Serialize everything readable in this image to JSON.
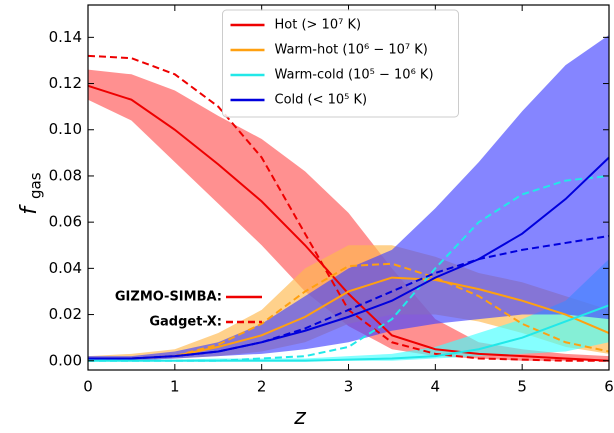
{
  "chart_data": {
    "type": "line",
    "xlabel": "z",
    "ylabel": "f",
    "ylabel_sub": "gas",
    "x": [
      0,
      0.5,
      1,
      1.5,
      2,
      2.5,
      3,
      3.5,
      4,
      4.5,
      5,
      5.5,
      6
    ],
    "xlim": [
      0,
      6
    ],
    "ylim": [
      -0.004,
      0.154
    ],
    "xticks": [
      0,
      1,
      2,
      3,
      4,
      5,
      6
    ],
    "yticks": [
      {
        "value": 0,
        "label": "0.00"
      },
      {
        "value": 0.02,
        "label": "0.02"
      },
      {
        "value": 0.04,
        "label": "0.04"
      },
      {
        "value": 0.06,
        "label": "0.06"
      },
      {
        "value": 0.08,
        "label": "0.08"
      },
      {
        "value": 0.1,
        "label": "0.10"
      },
      {
        "value": 0.12,
        "label": "0.12"
      },
      {
        "value": 0.14,
        "label": "0.14"
      }
    ],
    "legend": "upper center",
    "series": [
      {
        "name": "Hot (> 10⁷ K)",
        "color": "#ee0000",
        "band_color": "#ff5555",
        "simba": [
          0.119,
          0.113,
          0.1,
          0.085,
          0.069,
          0.05,
          0.029,
          0.011,
          0.005,
          0.003,
          0.002,
          0.001,
          0
        ],
        "gadget": [
          0.132,
          0.131,
          0.124,
          0.11,
          0.088,
          0.055,
          0.022,
          0.008,
          0.003,
          0.001,
          0.0005,
          0,
          0
        ],
        "band_high": [
          0.126,
          0.124,
          0.117,
          0.106,
          0.096,
          0.082,
          0.064,
          0.04,
          0.018,
          0.008,
          0.005,
          0.003,
          0.002
        ],
        "band_low": [
          0.113,
          0.104,
          0.086,
          0.068,
          0.05,
          0.03,
          0.015,
          0.005,
          0.002,
          0.001,
          0,
          0,
          0
        ]
      },
      {
        "name": "Warm-hot (10⁶ − 10⁷ K)",
        "color": "#ffa010",
        "band_color": "#ffb84d",
        "simba": [
          0.001,
          0.001,
          0.002,
          0.006,
          0.011,
          0.019,
          0.03,
          0.036,
          0.035,
          0.031,
          0.026,
          0.02,
          0.012
        ],
        "gadget": [
          0.001,
          0.001,
          0.002,
          0.007,
          0.016,
          0.03,
          0.041,
          0.042,
          0.036,
          0.028,
          0.016,
          0.008,
          0.004
        ],
        "band_high": [
          0.002,
          0.003,
          0.005,
          0.012,
          0.022,
          0.04,
          0.05,
          0.05,
          0.045,
          0.038,
          0.034,
          0.028,
          0.022
        ],
        "band_low": [
          0,
          0.0005,
          0.001,
          0.002,
          0.004,
          0.008,
          0.016,
          0.02,
          0.02,
          0.017,
          0.012,
          0.006,
          0.003
        ]
      },
      {
        "name": "Warm-cold (10⁵ − 10⁶ K)",
        "color": "#22e8e8",
        "band_color": "#44ffff",
        "simba": [
          0,
          0,
          0,
          0,
          0,
          0,
          0.0005,
          0.001,
          0.002,
          0.005,
          0.01,
          0.017,
          0.024
        ],
        "gadget": [
          0,
          0,
          0,
          0,
          0.001,
          0.002,
          0.006,
          0.018,
          0.04,
          0.06,
          0.072,
          0.078,
          0.08
        ],
        "band_high": [
          0.0005,
          0.0005,
          0.0005,
          0.001,
          0.001,
          0.001,
          0.002,
          0.003,
          0.006,
          0.012,
          0.018,
          0.026,
          0.044
        ],
        "band_low": [
          0,
          0,
          0,
          0,
          0,
          0,
          0,
          0,
          0.001,
          0.002,
          0.003,
          0.004,
          0.008
        ]
      },
      {
        "name": "Cold (< 10⁵ K)",
        "color": "#0000dd",
        "band_color": "#4444ff",
        "simba": [
          0.001,
          0.001,
          0.002,
          0.004,
          0.008,
          0.013,
          0.019,
          0.026,
          0.036,
          0.044,
          0.055,
          0.07,
          0.088
        ],
        "gadget": [
          0.001,
          0.001,
          0.002,
          0.004,
          0.008,
          0.014,
          0.022,
          0.03,
          0.038,
          0.044,
          0.048,
          0.051,
          0.054
        ],
        "band_high": [
          0.002,
          0.002,
          0.004,
          0.008,
          0.016,
          0.028,
          0.04,
          0.048,
          0.066,
          0.086,
          0.108,
          0.128,
          0.141
        ],
        "band_low": [
          0,
          0,
          0.001,
          0.002,
          0.003,
          0.005,
          0.008,
          0.013,
          0.016,
          0.018,
          0.02,
          0.02,
          0.018
        ]
      }
    ],
    "model_legend": [
      {
        "name": "GIZMO-SIMBA:",
        "dashed": false
      },
      {
        "name": "Gadget-X:",
        "dashed": true
      }
    ],
    "model_legend_color": "#ee0000"
  }
}
